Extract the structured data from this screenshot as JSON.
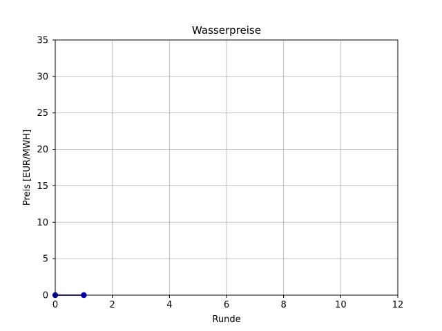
{
  "chart_data": {
    "type": "line",
    "title": "Wasserpreise",
    "xlabel": "Runde",
    "ylabel": "Preis [EUR/MWH]",
    "xlim": [
      0,
      12
    ],
    "ylim": [
      0,
      35
    ],
    "x_ticks": [
      0,
      2,
      4,
      6,
      8,
      10,
      12
    ],
    "y_ticks": [
      0,
      5,
      10,
      15,
      20,
      25,
      30,
      35
    ],
    "x_tick_labels": [
      "0",
      "2",
      "4",
      "6",
      "8",
      "10",
      "12"
    ],
    "y_tick_labels": [
      "0",
      "5",
      "10",
      "15",
      "20",
      "25",
      "30",
      "35"
    ],
    "grid": true,
    "series": [
      {
        "x": [
          0,
          1
        ],
        "values": [
          0,
          0
        ],
        "color": "#0000cc",
        "marker": "circle"
      }
    ]
  }
}
